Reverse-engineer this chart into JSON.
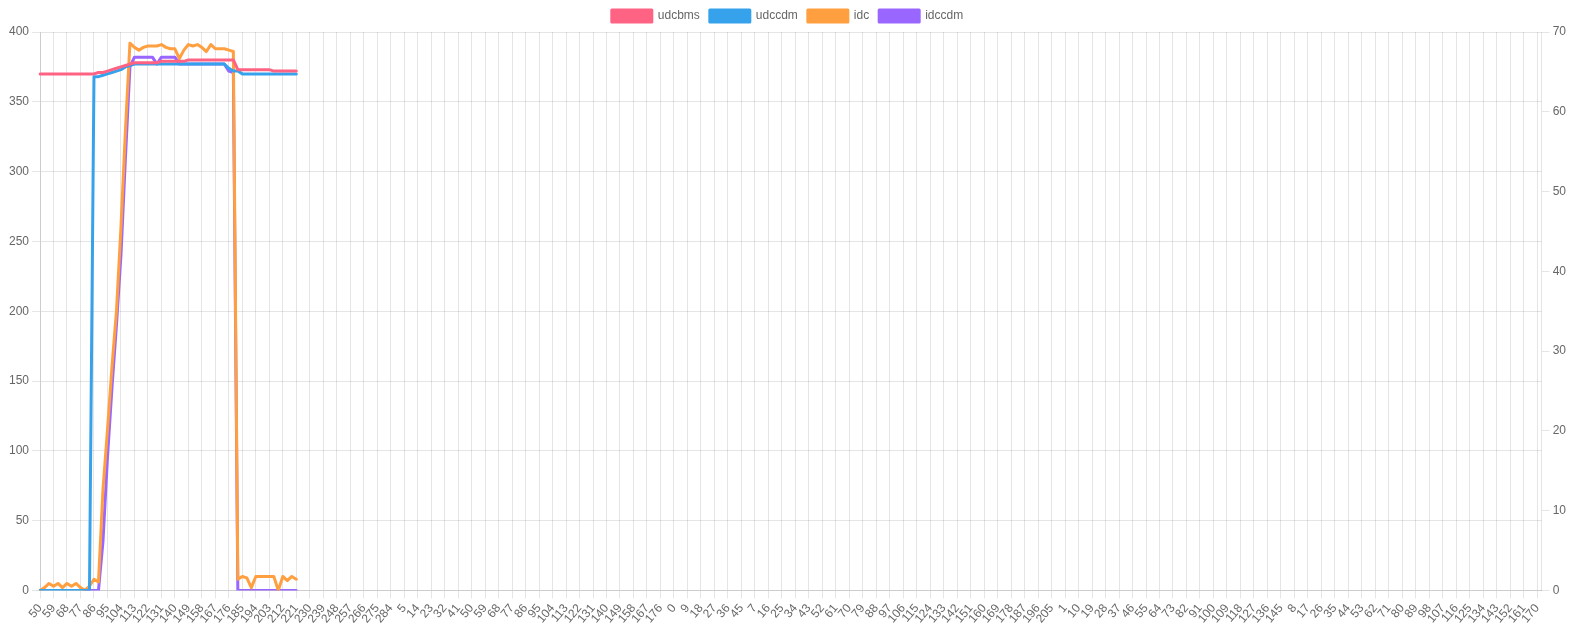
{
  "chart_data": {
    "type": "line",
    "categories": [
      "50",
      null,
      null,
      "59",
      null,
      null,
      "68",
      null,
      null,
      "77",
      null,
      null,
      "86",
      null,
      null,
      "95",
      null,
      null,
      "104",
      null,
      null,
      "113",
      null,
      null,
      "122",
      null,
      null,
      "131",
      null,
      null,
      "140",
      null,
      null,
      "149",
      null,
      null,
      "158",
      null,
      null,
      "167",
      null,
      null,
      "176",
      null,
      null,
      "185",
      null,
      null,
      "194",
      null,
      null,
      "203",
      null,
      null,
      "212",
      null,
      null,
      "221",
      null,
      null,
      "230",
      null,
      null,
      "239",
      null,
      null,
      "248",
      null,
      null,
      "257",
      null,
      null,
      "266",
      null,
      null,
      "275",
      null,
      null,
      "284",
      null,
      null,
      "5",
      null,
      null,
      "14",
      null,
      null,
      "23",
      null,
      null,
      "32",
      null,
      null,
      "41",
      null,
      null,
      "50",
      null,
      null,
      "59",
      null,
      null,
      "68",
      null,
      null,
      "77",
      null,
      null,
      "86",
      null,
      null,
      "95",
      null,
      null,
      "104",
      null,
      null,
      "113",
      null,
      null,
      "122",
      null,
      null,
      "131",
      null,
      null,
      "140",
      null,
      null,
      "149",
      null,
      null,
      "158",
      null,
      null,
      "167",
      null,
      null,
      "176",
      null,
      null,
      "0",
      null,
      null,
      "9",
      null,
      null,
      "18",
      null,
      null,
      "27",
      null,
      null,
      "36",
      null,
      null,
      "45",
      null,
      null,
      "7",
      null,
      null,
      "16",
      null,
      null,
      "25",
      null,
      null,
      "34",
      null,
      null,
      "43",
      null,
      null,
      "52",
      null,
      null,
      "61",
      null,
      null,
      "70",
      null,
      null,
      "79",
      null,
      null,
      "88",
      null,
      null,
      "97",
      null,
      null,
      "106",
      null,
      null,
      "115",
      null,
      null,
      "124",
      null,
      null,
      "133",
      null,
      null,
      "142",
      null,
      null,
      "151",
      null,
      null,
      "160",
      null,
      null,
      "169",
      null,
      null,
      "178",
      null,
      null,
      "187",
      null,
      null,
      "196",
      null,
      null,
      "205",
      null,
      null,
      "1",
      null,
      null,
      "10",
      null,
      null,
      "19",
      null,
      null,
      "28",
      null,
      null,
      "37",
      null,
      null,
      "46",
      null,
      null,
      "55",
      null,
      null,
      "64",
      null,
      null,
      "73",
      null,
      null,
      "82",
      null,
      null,
      "91",
      null,
      null,
      "100",
      null,
      null,
      "109",
      null,
      null,
      "118",
      null,
      null,
      "127",
      null,
      null,
      "136",
      null,
      null,
      "145",
      null,
      null,
      "8",
      null,
      null,
      "17",
      null,
      null,
      "26",
      null,
      null,
      "35",
      null,
      null,
      "44",
      null,
      null,
      "53",
      null,
      null,
      "62",
      null,
      null,
      "71",
      null,
      null,
      "80",
      null,
      null,
      "89",
      null,
      null,
      "98",
      null,
      null,
      "107",
      null,
      null,
      "116",
      null,
      null,
      "125",
      null,
      null,
      "134",
      null,
      null,
      "143",
      null,
      null,
      "152",
      null,
      null,
      "161",
      null,
      null,
      "170",
      null
    ],
    "series": [
      {
        "name": "udcbms",
        "color": "#ff6384",
        "values": [
          370,
          370,
          370,
          370,
          370,
          370,
          370,
          370,
          370,
          370,
          370,
          370,
          370,
          371,
          371,
          372,
          373,
          374,
          375,
          376,
          377,
          378,
          378,
          378,
          378,
          378,
          378,
          379,
          379,
          379,
          379,
          379,
          379,
          380,
          380,
          380,
          380,
          380,
          380,
          380,
          380,
          380,
          380,
          380,
          373,
          373,
          373,
          373,
          373,
          373,
          373,
          373,
          372,
          372,
          372,
          372,
          372,
          372,
          null,
          null,
          null,
          null,
          null,
          null,
          null,
          null,
          null,
          null,
          null,
          null,
          null,
          null,
          null,
          null,
          null,
          null,
          null,
          null,
          null,
          null,
          null,
          null,
          null,
          null,
          null,
          null,
          null,
          null,
          null,
          null,
          null,
          null,
          null,
          null,
          null,
          null,
          null,
          null,
          null,
          null,
          null,
          null,
          null,
          null,
          null,
          null,
          null,
          null,
          null,
          null,
          null,
          null,
          null,
          null,
          null,
          null,
          null,
          null,
          null,
          null,
          null,
          null,
          null,
          null,
          null,
          null,
          null,
          null,
          null,
          null,
          null,
          null,
          null,
          null,
          null,
          null,
          null,
          null,
          null,
          null,
          null,
          null,
          null,
          null,
          null,
          null,
          null,
          null,
          null,
          null,
          null,
          null,
          null,
          null,
          null,
          null,
          null,
          null,
          null,
          null,
          null,
          null,
          null,
          null,
          null,
          null,
          null,
          null,
          null,
          null,
          null,
          null,
          null,
          null,
          null,
          null,
          null,
          null,
          null,
          null,
          null,
          null,
          null,
          null,
          null,
          null,
          null,
          null,
          null,
          null,
          null,
          null,
          null,
          null,
          null,
          null,
          null,
          null,
          null,
          null,
          null,
          null,
          null,
          null,
          null,
          null,
          null,
          null,
          null,
          null,
          null,
          null,
          null,
          null,
          null,
          null,
          null,
          null,
          null,
          null,
          null,
          null,
          null,
          null,
          null,
          null,
          null,
          null,
          null,
          null,
          null,
          null,
          null,
          null,
          null,
          null,
          null,
          null,
          null,
          null,
          null,
          null,
          null,
          null,
          null,
          null,
          null,
          null,
          null,
          null,
          null,
          null,
          null,
          null,
          null,
          null,
          null,
          null,
          null,
          null,
          null,
          null,
          null,
          null,
          null,
          null,
          null,
          null,
          null,
          null,
          null,
          null,
          null,
          null,
          null,
          null,
          null,
          null,
          null,
          null,
          null,
          null,
          null,
          null,
          null,
          null,
          null,
          null,
          null,
          null,
          null,
          null,
          null,
          null,
          null,
          null,
          null,
          null,
          null,
          null,
          null,
          null,
          null,
          null,
          null,
          null,
          null,
          null,
          null,
          null,
          null,
          null,
          null,
          null,
          null,
          null,
          null,
          null,
          null,
          null,
          null,
          null,
          null,
          null,
          null,
          null,
          null,
          null,
          null,
          null,
          null,
          null,
          null,
          null,
          null
        ]
      },
      {
        "name": "udccdm",
        "color": "#36a2eb",
        "values": [
          0,
          0,
          0,
          0,
          0,
          0,
          0,
          0,
          0,
          0,
          0,
          0,
          368,
          368,
          369,
          370,
          371,
          372,
          373,
          375,
          376,
          377,
          377,
          377,
          377,
          377,
          377,
          377,
          377,
          377,
          377,
          377,
          377,
          377,
          377,
          377,
          377,
          377,
          377,
          377,
          377,
          377,
          374,
          372,
          372,
          370,
          370,
          370,
          370,
          370,
          370,
          370,
          370,
          370,
          370,
          370,
          370,
          370,
          null,
          null,
          null,
          null,
          null,
          null,
          null,
          null,
          null,
          null,
          null,
          null,
          null,
          null,
          null,
          null,
          null,
          null,
          null,
          null,
          null,
          null,
          null,
          null,
          null,
          null,
          null,
          null,
          null,
          null,
          null,
          null,
          null,
          null,
          null,
          null,
          null,
          null,
          null,
          null,
          null,
          null,
          null,
          null,
          null,
          null,
          null,
          null,
          null,
          null,
          null,
          null,
          null,
          null,
          null,
          null,
          null,
          null,
          null,
          null,
          null,
          null,
          null,
          null,
          null,
          null,
          null,
          null,
          null,
          null,
          null,
          null,
          null,
          null,
          null,
          null,
          null,
          null,
          null,
          null,
          null,
          null,
          null,
          null,
          null,
          null,
          null,
          null,
          null,
          null,
          null,
          null,
          null,
          null,
          null,
          null,
          null,
          null,
          null,
          null,
          null,
          null,
          null,
          null,
          null,
          null,
          null,
          null,
          null,
          null,
          null,
          null,
          null,
          null,
          null,
          null,
          null,
          null,
          null,
          null,
          null,
          null,
          null,
          null,
          null,
          null,
          null,
          null,
          null,
          null,
          null,
          null,
          null,
          null,
          null,
          null,
          null,
          null,
          null,
          null,
          null,
          null,
          null,
          null,
          null,
          null,
          null,
          null,
          null,
          null,
          null,
          null,
          null,
          null,
          null,
          null,
          null,
          null,
          null,
          null,
          null,
          null,
          null,
          null,
          null,
          null,
          null,
          null,
          null,
          null,
          null,
          null,
          null,
          null,
          null,
          null,
          null,
          null,
          null,
          null,
          null,
          null,
          null,
          null,
          null,
          null,
          null,
          null,
          null,
          null,
          null,
          null,
          null,
          null,
          null,
          null,
          null,
          null,
          null,
          null,
          null,
          null,
          null,
          null,
          null,
          null,
          null,
          null,
          null,
          null,
          null,
          null,
          null,
          null,
          null,
          null,
          null,
          null,
          null,
          null,
          null,
          null,
          null,
          null,
          null,
          null,
          null,
          null,
          null,
          null,
          null,
          null,
          null,
          null,
          null,
          null,
          null,
          null,
          null,
          null,
          null,
          null,
          null,
          null,
          null,
          null,
          null,
          null,
          null,
          null,
          null,
          null,
          null,
          null,
          null,
          null,
          null,
          null,
          null,
          null,
          null,
          null,
          null,
          null,
          null,
          null,
          null,
          null,
          null,
          null,
          null,
          null,
          null,
          null,
          null,
          null,
          null
        ]
      },
      {
        "name": "idc",
        "color": "#ff9f40",
        "values": [
          0,
          2,
          5,
          3,
          5,
          2,
          5,
          3,
          5,
          2,
          0,
          3,
          8,
          6,
          72,
          115,
          160,
          200,
          260,
          330,
          392,
          389,
          387,
          389,
          390,
          390,
          390,
          391,
          389,
          388,
          388,
          381,
          387,
          391,
          390,
          391,
          389,
          386,
          391,
          388,
          388,
          388,
          387,
          386,
          8,
          10,
          9,
          2,
          10,
          10,
          10,
          10,
          10,
          0,
          10,
          7,
          10,
          8,
          null,
          null,
          null,
          null,
          null,
          null,
          null,
          null,
          null,
          null,
          null,
          null,
          null,
          null,
          null,
          null,
          null,
          null,
          null,
          null,
          null,
          null,
          null,
          null,
          null,
          null,
          null,
          null,
          null,
          null,
          null,
          null,
          null,
          null,
          null,
          null,
          null,
          null,
          null,
          null,
          null,
          null,
          null,
          null,
          null,
          null,
          null,
          null,
          null,
          null,
          null,
          null,
          null,
          null,
          null,
          null,
          null,
          null,
          null,
          null,
          null,
          null,
          null,
          null,
          null,
          null,
          null,
          null,
          null,
          null,
          null,
          null,
          null,
          null,
          null,
          null,
          null,
          null,
          null,
          null,
          null,
          null,
          null,
          null,
          null,
          null,
          null,
          null,
          null,
          null,
          null,
          null,
          null,
          null,
          null,
          null,
          null,
          null,
          null,
          null,
          null,
          null,
          null,
          null,
          null,
          null,
          null,
          null,
          null,
          null,
          null,
          null,
          null,
          null,
          null,
          null,
          null,
          null,
          null,
          null,
          null,
          null,
          null,
          null,
          null,
          null,
          null,
          null,
          null,
          null,
          null,
          null,
          null,
          null,
          null,
          null,
          null,
          null,
          null,
          null,
          null,
          null,
          null,
          null,
          null,
          null,
          null,
          null,
          null,
          null,
          null,
          null,
          null,
          null,
          null,
          null,
          null,
          null,
          null,
          null,
          null,
          null,
          null,
          null,
          null,
          null,
          null,
          null,
          null,
          null,
          null,
          null,
          null,
          null,
          null,
          null,
          null,
          null,
          null,
          null,
          null,
          null,
          null,
          null,
          null,
          null,
          null,
          null,
          null,
          null,
          null,
          null,
          null,
          null,
          null,
          null,
          null,
          null,
          null,
          null,
          null,
          null,
          null,
          null,
          null,
          null,
          null,
          null,
          null,
          null,
          null,
          null,
          null,
          null,
          null,
          null,
          null,
          null,
          null,
          null,
          null,
          null,
          null,
          null,
          null,
          null,
          null,
          null,
          null,
          null,
          null,
          null,
          null,
          null,
          null,
          null,
          null,
          null,
          null,
          null,
          null,
          null,
          null,
          null,
          null,
          null,
          null,
          null,
          null,
          null,
          null,
          null,
          null,
          null,
          null,
          null,
          null,
          null,
          null,
          null,
          null,
          null,
          null,
          null,
          null,
          null,
          null,
          null,
          null,
          null,
          null,
          null,
          null,
          null,
          null,
          null,
          null
        ]
      },
      {
        "name": "idccdm",
        "color": "#9966ff",
        "values": [
          null,
          null,
          null,
          null,
          null,
          null,
          null,
          null,
          null,
          null,
          0,
          0,
          0,
          0,
          35,
          95,
          145,
          190,
          240,
          310,
          375,
          382,
          382,
          382,
          382,
          382,
          377,
          382,
          382,
          382,
          382,
          377,
          377,
          377,
          377,
          377,
          377,
          377,
          377,
          377,
          377,
          377,
          372,
          371,
          0,
          0,
          0,
          0,
          0,
          0,
          0,
          0,
          0,
          0,
          0,
          0,
          0,
          0,
          null,
          null,
          null,
          null,
          null,
          null,
          null,
          null,
          null,
          null,
          null,
          null,
          null,
          null,
          null,
          null,
          null,
          null,
          null,
          null,
          null,
          null,
          null,
          null,
          null,
          null,
          null,
          null,
          null,
          null,
          null,
          null,
          null,
          null,
          null,
          null,
          null,
          null,
          null,
          null,
          null,
          null,
          null,
          null,
          null,
          null,
          null,
          null,
          null,
          null,
          null,
          null,
          null,
          null,
          null,
          null,
          null,
          null,
          null,
          null,
          null,
          null,
          null,
          null,
          null,
          null,
          null,
          null,
          null,
          null,
          null,
          null,
          null,
          null,
          null,
          null,
          null,
          null,
          null,
          null,
          null,
          null,
          null,
          null,
          null,
          null,
          null,
          null,
          null,
          null,
          null,
          null,
          null,
          null,
          null,
          null,
          null,
          null,
          null,
          null,
          null,
          null,
          null,
          null,
          null,
          null,
          null,
          null,
          null,
          null,
          null,
          null,
          null,
          null,
          null,
          null,
          null,
          null,
          null,
          null,
          null,
          null,
          null,
          null,
          null,
          null,
          null,
          null,
          null,
          null,
          null,
          null,
          null,
          null,
          null,
          null,
          null,
          null,
          null,
          null,
          null,
          null,
          null,
          null,
          null,
          null,
          null,
          null,
          null,
          null,
          null,
          null,
          null,
          null,
          null,
          null,
          null,
          null,
          null,
          null,
          null,
          null,
          null,
          null,
          null,
          null,
          null,
          null,
          null,
          null,
          null,
          null,
          null,
          null,
          null,
          null,
          null,
          null,
          null,
          null,
          null,
          null,
          null,
          null,
          null,
          null,
          null,
          null,
          null,
          null,
          null,
          null,
          null,
          null,
          null,
          null,
          null,
          null,
          null,
          null,
          null,
          null,
          null,
          null,
          null,
          null,
          null,
          null,
          null,
          null,
          null,
          null,
          null,
          null,
          null,
          null,
          null,
          null,
          null,
          null,
          null,
          null,
          null,
          null,
          null,
          null,
          null,
          null,
          null,
          null,
          null,
          null,
          null,
          null,
          null,
          null,
          null,
          null,
          null,
          null,
          null,
          null,
          null,
          null,
          null,
          null,
          null,
          null,
          null,
          null,
          null,
          null,
          null,
          null,
          null,
          null,
          null,
          null,
          null,
          null,
          null,
          null,
          null,
          null,
          null,
          null,
          null,
          null,
          null,
          null,
          null,
          null,
          null,
          null,
          null,
          null,
          null
        ]
      }
    ],
    "ylim": [
      0,
      400
    ],
    "yticks": [
      0,
      50,
      100,
      150,
      200,
      250,
      300,
      350,
      400
    ],
    "y2lim": [
      0,
      70
    ],
    "y2ticks": [
      0,
      10,
      20,
      30,
      40,
      50,
      60,
      70
    ],
    "grid": true,
    "legend": "top",
    "marker": "none",
    "line_style": "solid"
  }
}
